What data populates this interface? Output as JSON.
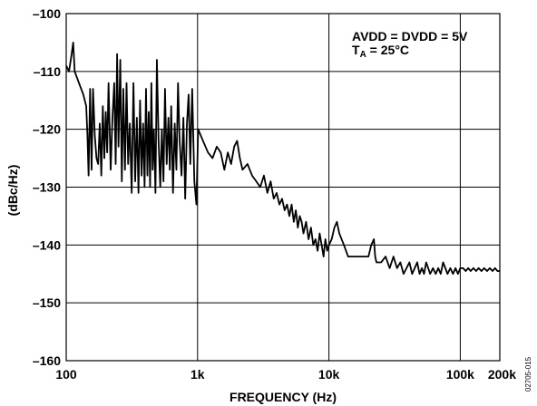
{
  "chart_data": {
    "type": "line",
    "title": "",
    "xlabel": "FREQUENCY (Hz)",
    "ylabel": "(dBc/Hz)",
    "x_scale": "log",
    "xlim": [
      100,
      200000
    ],
    "ylim": [
      -160,
      -100
    ],
    "grid": true,
    "x_ticks": [
      {
        "value": 100,
        "label": "100"
      },
      {
        "value": 1000,
        "label": "1k"
      },
      {
        "value": 10000,
        "label": "10k"
      },
      {
        "value": 100000,
        "label": "100k"
      },
      {
        "value": 200000,
        "label": "200k"
      }
    ],
    "x_gridlines": [
      1000,
      10000,
      100000
    ],
    "y_ticks": [
      {
        "value": -100,
        "label": "–100"
      },
      {
        "value": -110,
        "label": "–110"
      },
      {
        "value": -120,
        "label": "–120"
      },
      {
        "value": -130,
        "label": "–130"
      },
      {
        "value": -140,
        "label": "–140"
      },
      {
        "value": -150,
        "label": "–150"
      },
      {
        "value": -160,
        "label": "–160"
      }
    ],
    "annotations": [
      {
        "line1": "AVDD = DVDD = 5V",
        "line2_main": "T",
        "line2_sub": "A",
        "line2_rest": " = 25°C"
      }
    ],
    "figure_id": "02705-015",
    "series": [
      {
        "color": "#000000",
        "points": [
          [
            100,
            -109
          ],
          [
            105,
            -110
          ],
          [
            110,
            -107
          ],
          [
            113,
            -105
          ],
          [
            116,
            -110
          ],
          [
            125,
            -112
          ],
          [
            135,
            -114
          ],
          [
            142,
            -116
          ],
          [
            145,
            -121
          ],
          [
            148,
            -128
          ],
          [
            152,
            -113
          ],
          [
            156,
            -127
          ],
          [
            160,
            -113
          ],
          [
            165,
            -121
          ],
          [
            170,
            -125
          ],
          [
            175,
            -126
          ],
          [
            180,
            -119
          ],
          [
            185,
            -128
          ],
          [
            190,
            -116
          ],
          [
            195,
            -125
          ],
          [
            200,
            -117
          ],
          [
            205,
            -124
          ],
          [
            210,
            -112
          ],
          [
            218,
            -127
          ],
          [
            225,
            -118
          ],
          [
            232,
            -112
          ],
          [
            238,
            -126
          ],
          [
            244,
            -107
          ],
          [
            250,
            -123
          ],
          [
            258,
            -108
          ],
          [
            265,
            -129
          ],
          [
            272,
            -113
          ],
          [
            280,
            -127
          ],
          [
            288,
            -112
          ],
          [
            296,
            -126
          ],
          [
            305,
            -119
          ],
          [
            315,
            -131
          ],
          [
            325,
            -112
          ],
          [
            335,
            -129
          ],
          [
            345,
            -118
          ],
          [
            355,
            -131
          ],
          [
            365,
            -115
          ],
          [
            375,
            -128
          ],
          [
            385,
            -119
          ],
          [
            395,
            -130
          ],
          [
            405,
            -113
          ],
          [
            415,
            -128
          ],
          [
            425,
            -117
          ],
          [
            435,
            -130
          ],
          [
            445,
            -112
          ],
          [
            455,
            -127
          ],
          [
            465,
            -120
          ],
          [
            478,
            -131
          ],
          [
            490,
            -108
          ],
          [
            505,
            -122
          ],
          [
            520,
            -130
          ],
          [
            535,
            -120
          ],
          [
            550,
            -129
          ],
          [
            565,
            -113
          ],
          [
            582,
            -126
          ],
          [
            600,
            -118
          ],
          [
            615,
            -127
          ],
          [
            630,
            -116
          ],
          [
            650,
            -131
          ],
          [
            670,
            -119
          ],
          [
            690,
            -127
          ],
          [
            710,
            -112
          ],
          [
            730,
            -122
          ],
          [
            755,
            -128
          ],
          [
            780,
            -118
          ],
          [
            805,
            -132
          ],
          [
            830,
            -119
          ],
          [
            855,
            -114
          ],
          [
            880,
            -126
          ],
          [
            910,
            -113
          ],
          [
            945,
            -129
          ],
          [
            980,
            -133
          ],
          [
            1010,
            -120
          ],
          [
            1100,
            -122
          ],
          [
            1200,
            -124
          ],
          [
            1300,
            -125
          ],
          [
            1400,
            -123
          ],
          [
            1500,
            -124
          ],
          [
            1600,
            -127
          ],
          [
            1700,
            -124
          ],
          [
            1800,
            -126
          ],
          [
            1900,
            -123
          ],
          [
            2000,
            -122
          ],
          [
            2100,
            -125
          ],
          [
            2200,
            -127
          ],
          [
            2400,
            -126
          ],
          [
            2600,
            -128
          ],
          [
            2800,
            -129
          ],
          [
            3000,
            -130
          ],
          [
            3200,
            -128
          ],
          [
            3400,
            -131
          ],
          [
            3600,
            -129
          ],
          [
            3800,
            -132
          ],
          [
            4000,
            -131
          ],
          [
            4200,
            -133
          ],
          [
            4400,
            -132
          ],
          [
            4600,
            -134
          ],
          [
            4800,
            -133
          ],
          [
            5000,
            -135
          ],
          [
            5200,
            -133
          ],
          [
            5400,
            -136
          ],
          [
            5600,
            -134
          ],
          [
            5800,
            -137
          ],
          [
            6000,
            -135
          ],
          [
            6200,
            -136
          ],
          [
            6400,
            -138
          ],
          [
            6700,
            -136
          ],
          [
            7000,
            -139
          ],
          [
            7300,
            -137
          ],
          [
            7600,
            -140
          ],
          [
            7900,
            -139
          ],
          [
            8200,
            -141
          ],
          [
            8500,
            -138
          ],
          [
            8800,
            -140
          ],
          [
            9100,
            -142
          ],
          [
            9400,
            -139
          ],
          [
            9700,
            -141
          ],
          [
            10000,
            -140
          ],
          [
            10500,
            -139
          ],
          [
            11000,
            -137
          ],
          [
            11500,
            -136
          ],
          [
            12000,
            -138
          ],
          [
            13000,
            -140
          ],
          [
            14000,
            -142
          ],
          [
            16000,
            -142
          ],
          [
            18000,
            -142
          ],
          [
            20000,
            -142
          ],
          [
            21000,
            -140
          ],
          [
            22000,
            -139
          ],
          [
            22500,
            -142
          ],
          [
            23000,
            -143
          ],
          [
            25000,
            -143
          ],
          [
            27000,
            -142
          ],
          [
            29000,
            -144
          ],
          [
            31000,
            -142
          ],
          [
            33000,
            -144
          ],
          [
            35000,
            -143
          ],
          [
            37000,
            -145
          ],
          [
            39000,
            -144
          ],
          [
            41000,
            -143
          ],
          [
            43000,
            -145
          ],
          [
            45000,
            -144
          ],
          [
            47000,
            -143
          ],
          [
            49000,
            -145
          ],
          [
            51000,
            -144
          ],
          [
            53000,
            -145
          ],
          [
            55000,
            -143
          ],
          [
            57000,
            -144
          ],
          [
            59000,
            -145
          ],
          [
            62000,
            -144
          ],
          [
            65000,
            -145
          ],
          [
            68000,
            -144
          ],
          [
            71000,
            -145
          ],
          [
            74000,
            -143
          ],
          [
            77000,
            -144
          ],
          [
            80000,
            -145
          ],
          [
            84000,
            -144
          ],
          [
            88000,
            -145
          ],
          [
            92000,
            -144
          ],
          [
            96000,
            -145
          ],
          [
            100000,
            -144
          ],
          [
            105000,
            -144
          ],
          [
            110000,
            -144.5
          ],
          [
            115000,
            -144
          ],
          [
            120000,
            -144.5
          ],
          [
            126000,
            -144
          ],
          [
            132000,
            -144.5
          ],
          [
            138000,
            -144
          ],
          [
            145000,
            -144.5
          ],
          [
            152000,
            -144
          ],
          [
            160000,
            -144.5
          ],
          [
            168000,
            -144
          ],
          [
            176000,
            -144.5
          ],
          [
            184000,
            -144
          ],
          [
            192000,
            -144.5
          ],
          [
            200000,
            -144.5
          ]
        ]
      }
    ]
  }
}
